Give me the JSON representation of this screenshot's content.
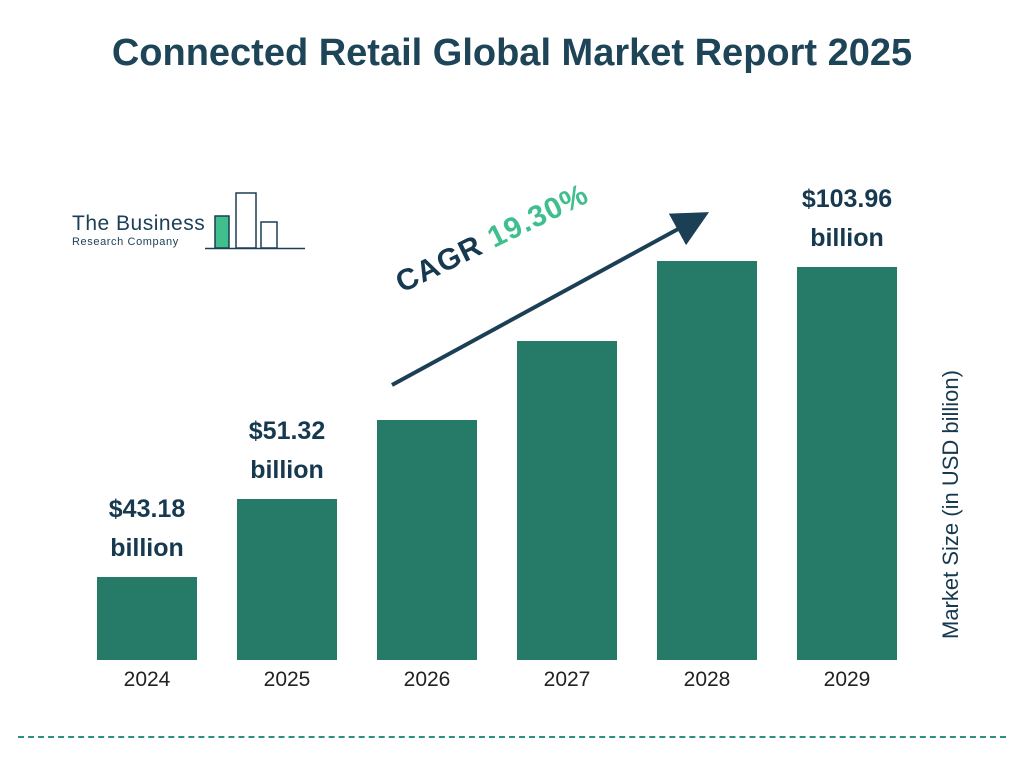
{
  "title": "Connected Retail Global Market Report 2025",
  "logo": {
    "line1": "The Business",
    "line2": "Research Company"
  },
  "cagr": {
    "prefix": "CAGR",
    "value": "19.30%"
  },
  "y_axis_label": "Market Size (in USD billion)",
  "colors": {
    "bar": "#257a68",
    "navy": "#16394f",
    "title": "#1d4557",
    "green_accent": "#3fbe8e",
    "divider": "#2f9080"
  },
  "chart_data": {
    "type": "bar",
    "title": "Connected Retail Global Market Report 2025",
    "categories": [
      "2024",
      "2025",
      "2026",
      "2027",
      "2028",
      "2029"
    ],
    "values": [
      43.18,
      51.32,
      61.22,
      73.04,
      87.14,
      103.96
    ],
    "unit": "USD billion",
    "ylabel": "Market Size (in USD billion)",
    "xlabel": "",
    "bar_labels": [
      {
        "value": "$43.18",
        "unit": "billion"
      },
      {
        "value": "$51.32",
        "unit": "billion"
      },
      null,
      null,
      null,
      {
        "value": "$103.96",
        "unit": "billion"
      }
    ],
    "cagr_percent": 19.3,
    "scale": "log",
    "grid": false,
    "legend": false
  }
}
